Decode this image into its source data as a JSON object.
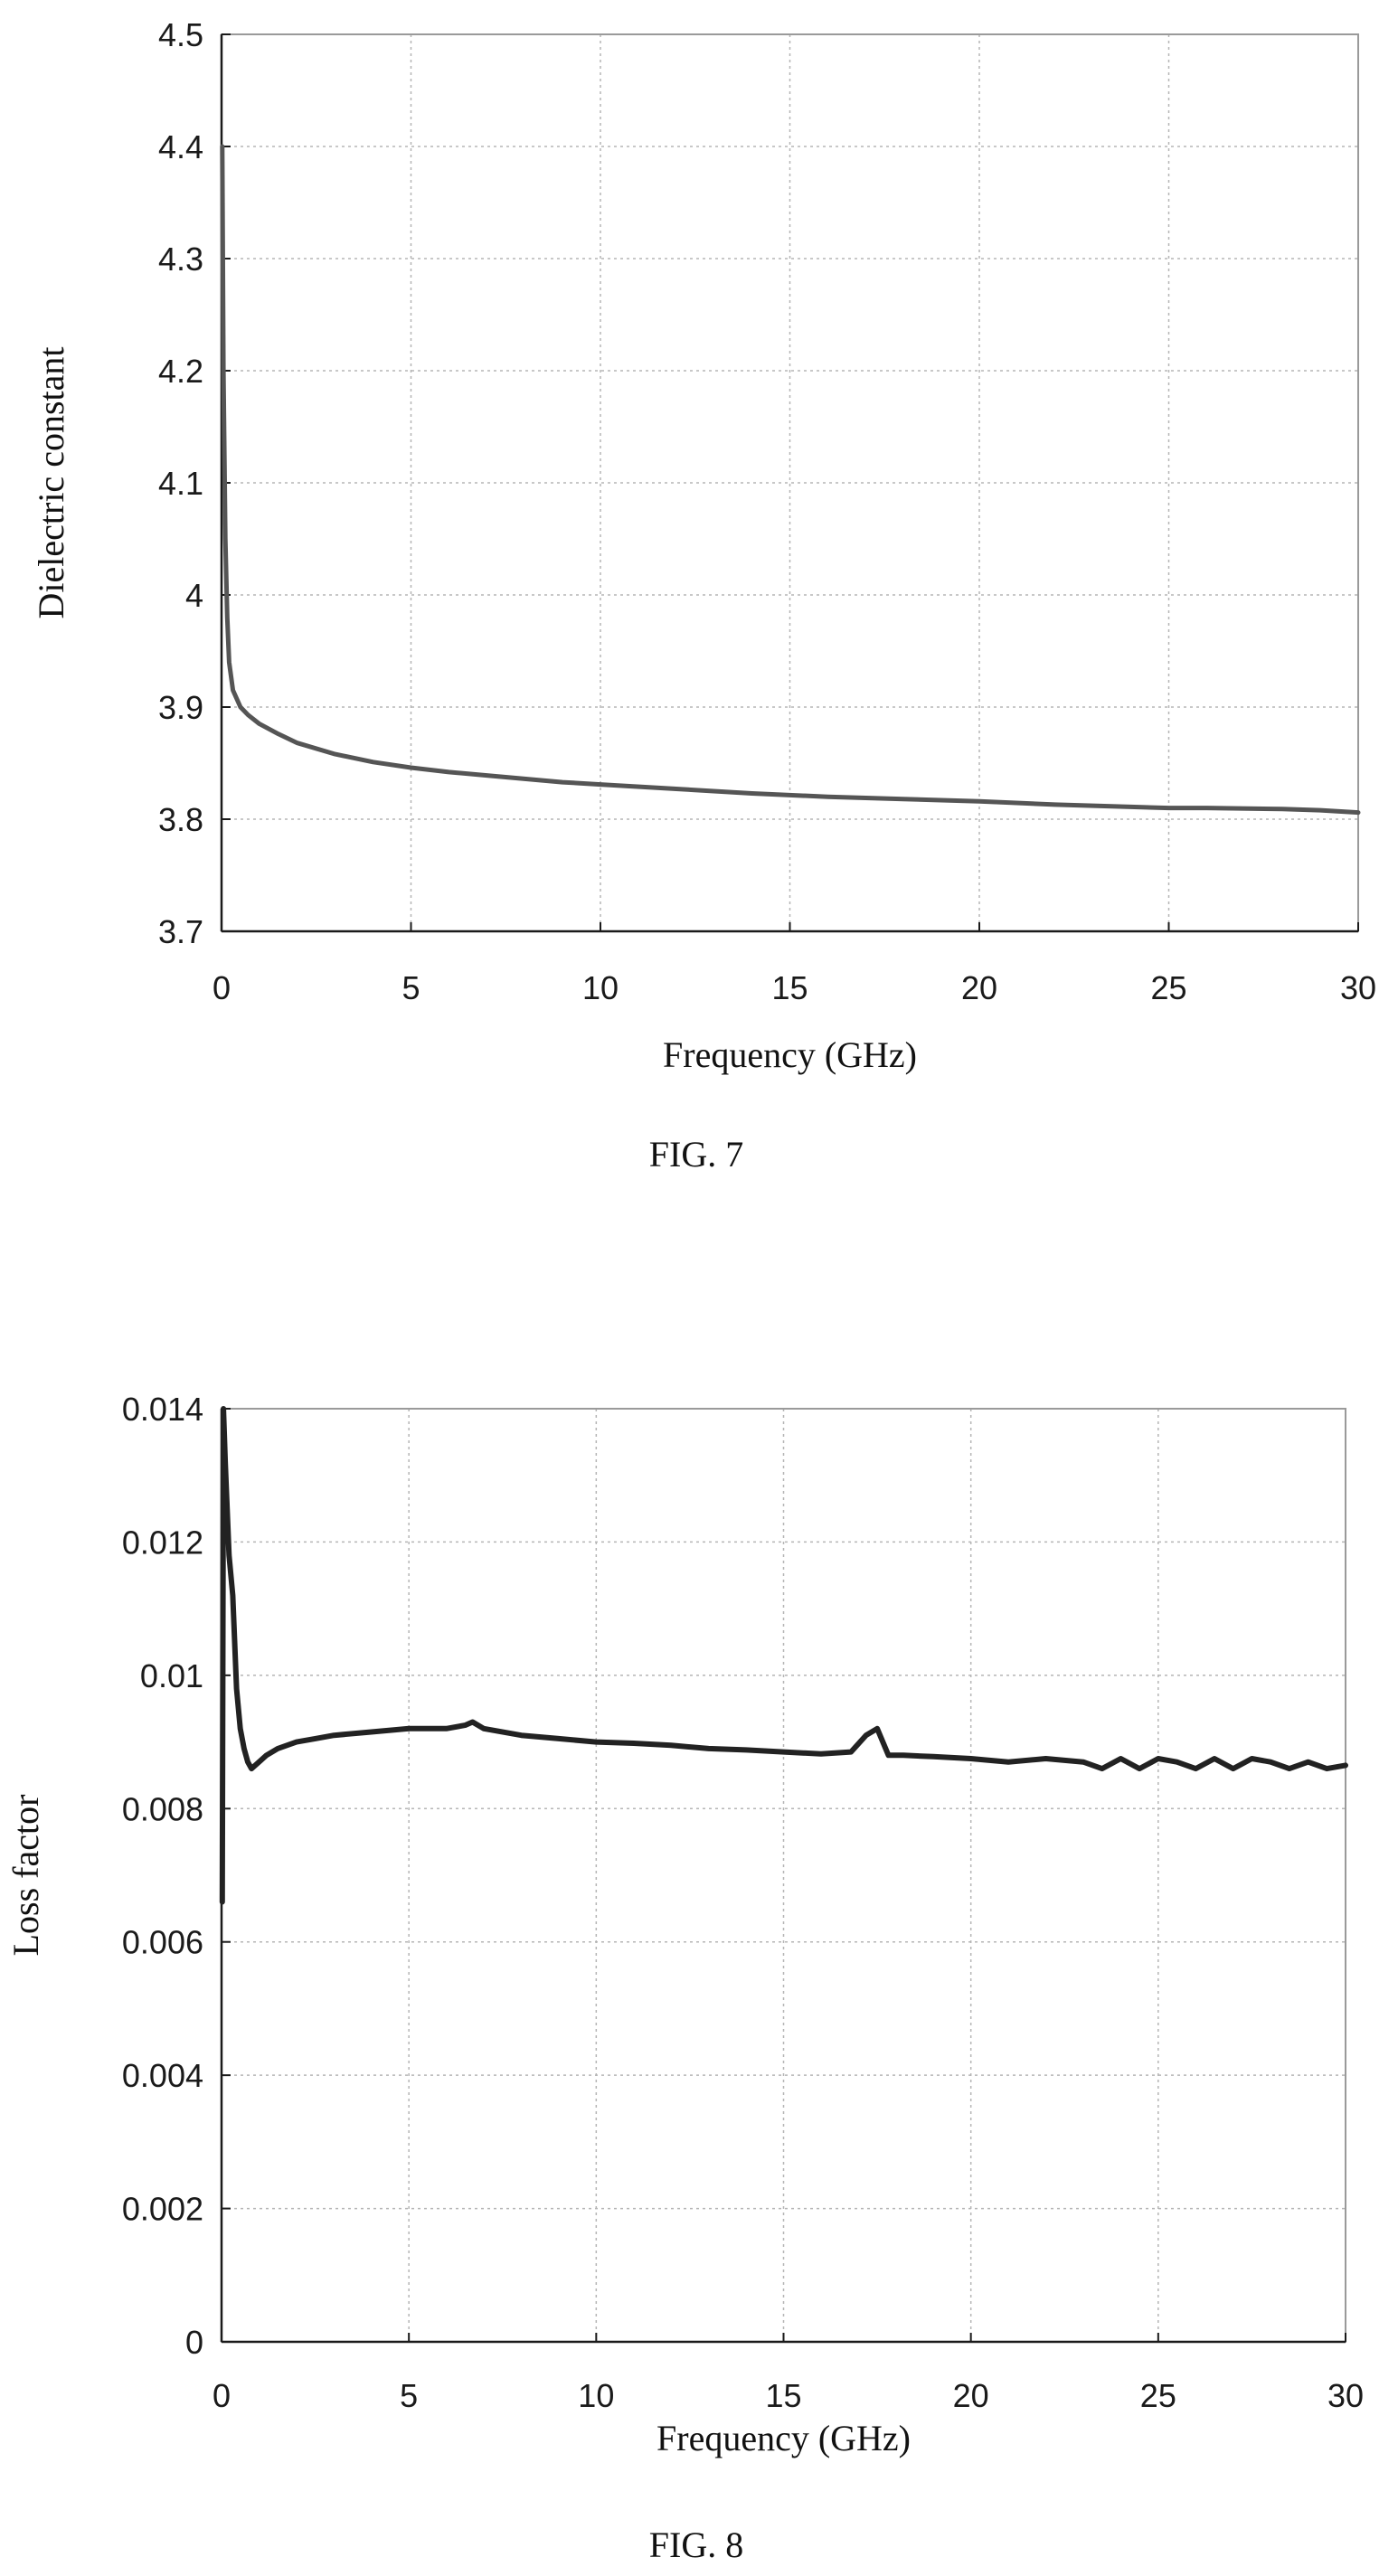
{
  "chart_data": [
    {
      "type": "line",
      "title": "",
      "caption": "FIG. 7",
      "xlabel": "Frequency (GHz)",
      "ylabel": "Dielectric constant",
      "xlim": [
        0,
        30
      ],
      "ylim": [
        3.7,
        4.5
      ],
      "x_ticks": [
        "0",
        "5",
        "10",
        "15",
        "20",
        "25",
        "30"
      ],
      "y_ticks": [
        "3.7",
        "3.8",
        "3.9",
        "4",
        "4.1",
        "4.2",
        "4.3",
        "4.4",
        "4.5"
      ],
      "grid": true,
      "line_color": "#555555",
      "series": [
        {
          "x": [
            0.02,
            0.05,
            0.1,
            0.15,
            0.2,
            0.3,
            0.5,
            0.7,
            1,
            1.5,
            2,
            3,
            4,
            5,
            6,
            7,
            8,
            9,
            10,
            12,
            14,
            16,
            18,
            20,
            22,
            24,
            25,
            26,
            28,
            29,
            30
          ],
          "values": [
            4.4,
            4.2,
            4.05,
            3.98,
            3.94,
            3.915,
            3.9,
            3.893,
            3.885,
            3.876,
            3.868,
            3.858,
            3.851,
            3.846,
            3.842,
            3.839,
            3.836,
            3.833,
            3.831,
            3.827,
            3.823,
            3.82,
            3.818,
            3.816,
            3.813,
            3.811,
            3.81,
            3.81,
            3.809,
            3.808,
            3.806
          ]
        }
      ]
    },
    {
      "type": "line",
      "title": "",
      "caption": "FIG. 8",
      "xlabel": "Frequency (GHz)",
      "ylabel": "Loss factor",
      "xlim": [
        0,
        30
      ],
      "ylim": [
        0,
        0.014
      ],
      "x_ticks": [
        "0",
        "5",
        "10",
        "15",
        "20",
        "25",
        "30"
      ],
      "y_ticks": [
        "0",
        "0.002",
        "0.004",
        "0.006",
        "0.008",
        "0.01",
        "0.012",
        "0.014"
      ],
      "grid": true,
      "line_color": "#222222",
      "series": [
        {
          "x": [
            0.02,
            0.05,
            0.1,
            0.15,
            0.2,
            0.3,
            0.4,
            0.5,
            0.6,
            0.7,
            0.8,
            1,
            1.2,
            1.5,
            2,
            2.5,
            3,
            4,
            5,
            6,
            6.5,
            6.7,
            7,
            8,
            9,
            10,
            11,
            12,
            13,
            14,
            15,
            16,
            16.8,
            17.2,
            17.5,
            17.8,
            18.2,
            19,
            20,
            21,
            22,
            23,
            23.5,
            24,
            24.5,
            25,
            25.5,
            26,
            26.5,
            27,
            27.5,
            28,
            28.5,
            29,
            29.5,
            30
          ],
          "values": [
            0.0066,
            0.014,
            0.0132,
            0.0125,
            0.0118,
            0.0112,
            0.0098,
            0.0092,
            0.0089,
            0.0087,
            0.0086,
            0.0087,
            0.0088,
            0.0089,
            0.009,
            0.00905,
            0.0091,
            0.00915,
            0.0092,
            0.0092,
            0.00925,
            0.0093,
            0.0092,
            0.0091,
            0.00905,
            0.009,
            0.00898,
            0.00895,
            0.0089,
            0.00888,
            0.00885,
            0.00882,
            0.00885,
            0.0091,
            0.0092,
            0.0088,
            0.0088,
            0.00878,
            0.00875,
            0.0087,
            0.00875,
            0.0087,
            0.0086,
            0.00875,
            0.0086,
            0.00875,
            0.0087,
            0.0086,
            0.00875,
            0.0086,
            0.00875,
            0.0087,
            0.0086,
            0.0087,
            0.0086,
            0.00865
          ]
        }
      ]
    }
  ]
}
